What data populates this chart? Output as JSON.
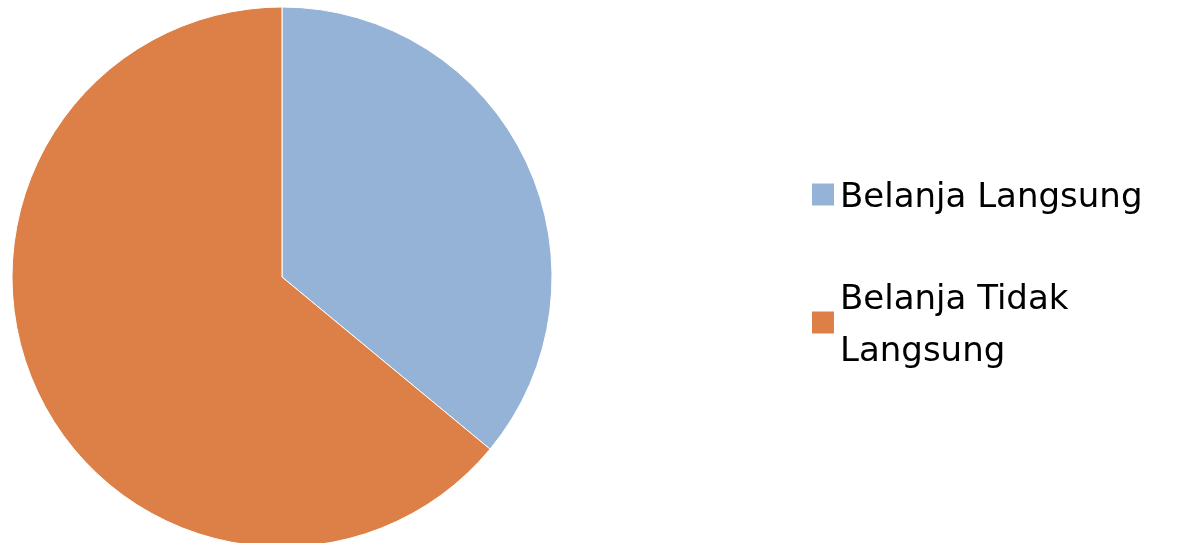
{
  "chart_data": {
    "type": "pie",
    "categories": [
      "Belanja Langsung",
      "Belanja Tidak Langsung"
    ],
    "values": [
      36,
      64
    ],
    "colors": [
      "#95b3d7",
      "#dd8047"
    ],
    "legend": "right"
  }
}
